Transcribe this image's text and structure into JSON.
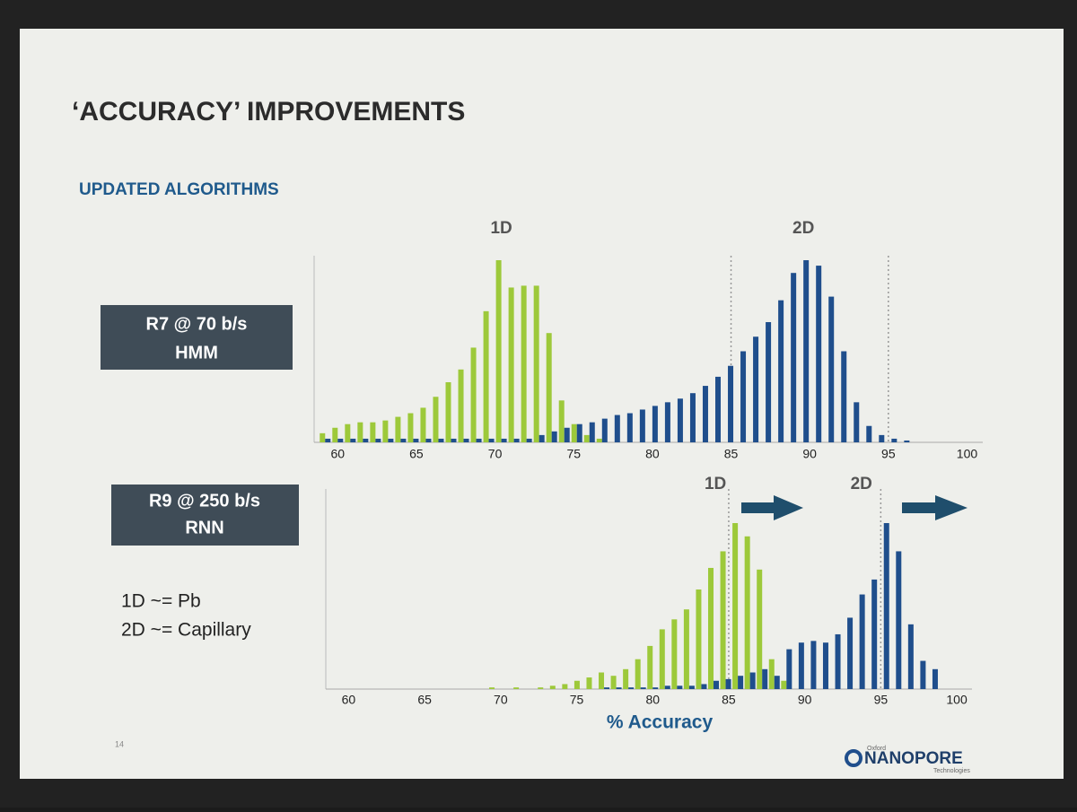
{
  "slide": {
    "title": "‘ACCURACY’ IMPROVEMENTS",
    "subtitle": "UPDATED ALGORITHMS",
    "boxes": [
      {
        "lines": [
          "R7 @ 70 b/s",
          "HMM"
        ]
      },
      {
        "lines": [
          "R9 @ 250 b/s",
          "RNN"
        ]
      }
    ],
    "notes": [
      "1D ~= Pb",
      "2D ~= Capillary"
    ],
    "page_number": "14",
    "logo": {
      "small": "Oxford",
      "name": "NANOPORE",
      "tag": "Technologies"
    }
  },
  "chart_data": [
    {
      "type": "bar",
      "xlim": [
        58.5,
        101
      ],
      "xticks": [
        60,
        65,
        70,
        75,
        80,
        85,
        90,
        95,
        100
      ],
      "ylim": [
        0,
        100
      ],
      "vlines": [
        85,
        95
      ],
      "x": [
        59.2,
        60,
        60.8,
        61.6,
        62.4,
        63.2,
        64,
        64.8,
        65.6,
        66.4,
        67.2,
        68,
        68.8,
        69.6,
        70.4,
        71.2,
        72,
        72.8,
        73.6,
        74.4,
        75.2,
        76,
        76.8,
        77.6,
        78.4,
        79.2,
        80,
        80.8,
        81.6,
        82.4,
        83.2,
        84,
        84.8,
        85.6,
        86.4,
        87.2,
        88,
        88.8,
        89.6,
        90.4,
        91.2,
        92,
        92.8,
        93.6,
        94.4,
        95.2,
        96
      ],
      "series": [
        {
          "name": "1D",
          "color": "#9dc93a",
          "values": [
            5,
            8,
            10,
            11,
            11,
            12,
            14,
            16,
            19,
            25,
            33,
            40,
            52,
            72,
            100,
            85,
            86,
            86,
            60,
            23,
            10,
            4,
            2,
            null,
            null,
            null,
            null,
            null,
            null,
            null,
            null,
            null,
            null,
            null,
            null,
            null,
            null,
            null,
            null,
            null,
            null,
            null,
            null,
            null,
            null,
            null,
            null
          ]
        },
        {
          "name": "2D",
          "color": "#1f4e8c",
          "values": [
            2,
            2,
            2,
            2,
            2,
            2,
            2,
            2,
            2,
            2,
            2,
            2,
            2,
            2,
            2,
            2,
            2,
            4,
            6,
            8,
            10,
            11,
            13,
            15,
            16,
            18,
            20,
            22,
            24,
            27,
            31,
            36,
            42,
            50,
            58,
            66,
            78,
            93,
            100,
            97,
            80,
            50,
            22,
            9,
            4,
            2,
            1
          ]
        }
      ]
    },
    {
      "type": "bar",
      "xlim": [
        58.5,
        101
      ],
      "xticks": [
        60,
        65,
        70,
        75,
        80,
        85,
        90,
        95,
        100
      ],
      "ylim": [
        0,
        100
      ],
      "vlines": [
        85,
        95
      ],
      "xlabel": "% Accuracy",
      "x": [
        69.6,
        70.4,
        71.2,
        72,
        72.8,
        73.6,
        74.4,
        75.2,
        76,
        76.8,
        77.6,
        78.4,
        79.2,
        80,
        80.8,
        81.6,
        82.4,
        83.2,
        84,
        84.8,
        85.6,
        86.4,
        87.2,
        88,
        88.8,
        89.6,
        90.4,
        91.2,
        92,
        92.8,
        93.6,
        94.4,
        95.2,
        96,
        96.8,
        97.6,
        98.4
      ],
      "series": [
        {
          "name": "1D",
          "color": "#9dc93a",
          "values": [
            1,
            0,
            1,
            0,
            1,
            2,
            3,
            5,
            7,
            10,
            8,
            12,
            18,
            26,
            36,
            42,
            48,
            60,
            73,
            83,
            100,
            92,
            72,
            18,
            5,
            null,
            null,
            null,
            null,
            null,
            null,
            null,
            null,
            null,
            null,
            null,
            null
          ]
        },
        {
          "name": "2D",
          "color": "#1f4e8c",
          "values": [
            0,
            0,
            0,
            0,
            0,
            0,
            0,
            0,
            0,
            1,
            1,
            1,
            1,
            1,
            2,
            2,
            2,
            3,
            5,
            6,
            8,
            10,
            12,
            8,
            24,
            28,
            29,
            28,
            33,
            43,
            57,
            66,
            100,
            83,
            39,
            17,
            12
          ]
        }
      ]
    }
  ]
}
